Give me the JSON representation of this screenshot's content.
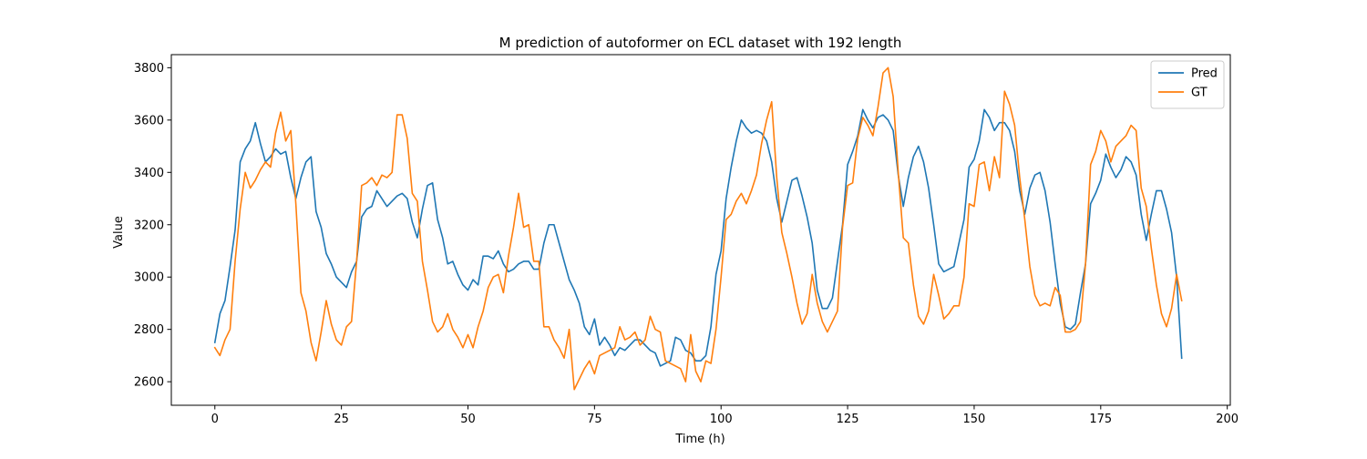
{
  "chart_data": {
    "type": "line",
    "title": "M prediction of autoformer on ECL dataset with 192 length",
    "xlabel": "Time (h)",
    "ylabel": "Value",
    "xlim": [
      -8.6,
      200.6
    ],
    "ylim": [
      2510,
      3850
    ],
    "x_ticks": [
      0,
      25,
      50,
      75,
      100,
      125,
      150,
      175,
      200
    ],
    "y_ticks": [
      2600,
      2800,
      3000,
      3200,
      3400,
      3600,
      3800
    ],
    "grid": false,
    "legend_position": "top-right",
    "series": [
      {
        "name": "Pred",
        "color": "#1f77b4",
        "values": [
          2750,
          2860,
          2910,
          3040,
          3180,
          3440,
          3490,
          3520,
          3590,
          3510,
          3440,
          3460,
          3490,
          3470,
          3480,
          3380,
          3300,
          3380,
          3440,
          3460,
          3250,
          3190,
          3090,
          3050,
          3000,
          2980,
          2960,
          3020,
          3060,
          3230,
          3260,
          3270,
          3330,
          3300,
          3270,
          3290,
          3310,
          3320,
          3300,
          3210,
          3150,
          3260,
          3350,
          3360,
          3220,
          3150,
          3050,
          3060,
          3010,
          2970,
          2950,
          2990,
          2970,
          3080,
          3080,
          3070,
          3100,
          3050,
          3020,
          3030,
          3050,
          3060,
          3060,
          3030,
          3030,
          3130,
          3200,
          3200,
          3130,
          3060,
          2990,
          2950,
          2900,
          2810,
          2780,
          2840,
          2740,
          2770,
          2740,
          2700,
          2730,
          2720,
          2740,
          2760,
          2760,
          2740,
          2720,
          2710,
          2660,
          2670,
          2680,
          2770,
          2760,
          2720,
          2710,
          2680,
          2680,
          2700,
          2810,
          3010,
          3100,
          3300,
          3420,
          3520,
          3600,
          3570,
          3550,
          3560,
          3550,
          3520,
          3440,
          3300,
          3210,
          3290,
          3370,
          3380,
          3310,
          3230,
          3130,
          2950,
          2880,
          2880,
          2920,
          3060,
          3200,
          3430,
          3480,
          3540,
          3640,
          3600,
          3570,
          3610,
          3620,
          3600,
          3560,
          3390,
          3270,
          3380,
          3460,
          3500,
          3440,
          3340,
          3200,
          3050,
          3020,
          3030,
          3040,
          3130,
          3220,
          3420,
          3450,
          3520,
          3640,
          3610,
          3560,
          3590,
          3590,
          3560,
          3480,
          3330,
          3240,
          3340,
          3390,
          3400,
          3330,
          3210,
          3050,
          2900,
          2810,
          2800,
          2820,
          2940,
          3050,
          3280,
          3320,
          3370,
          3470,
          3420,
          3380,
          3410,
          3460,
          3440,
          3390,
          3240,
          3140,
          3240,
          3330,
          3330,
          3260,
          3170,
          3000,
          2690
        ]
      },
      {
        "name": "GT",
        "color": "#ff7f0e",
        "values": [
          2730,
          2700,
          2760,
          2800,
          3060,
          3260,
          3400,
          3340,
          3370,
          3410,
          3440,
          3420,
          3550,
          3630,
          3520,
          3560,
          3280,
          2940,
          2870,
          2750,
          2680,
          2790,
          2910,
          2820,
          2760,
          2740,
          2810,
          2830,
          3060,
          3350,
          3360,
          3380,
          3350,
          3390,
          3380,
          3400,
          3620,
          3620,
          3530,
          3320,
          3290,
          3060,
          2950,
          2830,
          2790,
          2810,
          2860,
          2800,
          2770,
          2730,
          2780,
          2730,
          2810,
          2870,
          2960,
          3000,
          3010,
          2940,
          3080,
          3190,
          3320,
          3190,
          3200,
          3060,
          3060,
          2810,
          2810,
          2760,
          2730,
          2690,
          2800,
          2570,
          2610,
          2650,
          2680,
          2630,
          2700,
          2710,
          2720,
          2730,
          2810,
          2760,
          2770,
          2790,
          2740,
          2760,
          2850,
          2800,
          2790,
          2680,
          2670,
          2660,
          2650,
          2600,
          2780,
          2640,
          2600,
          2680,
          2670,
          2800,
          3000,
          3220,
          3240,
          3290,
          3320,
          3280,
          3330,
          3390,
          3510,
          3600,
          3670,
          3380,
          3170,
          3090,
          3000,
          2900,
          2820,
          2860,
          3010,
          2900,
          2830,
          2790,
          2830,
          2870,
          3190,
          3350,
          3360,
          3530,
          3610,
          3580,
          3540,
          3650,
          3780,
          3800,
          3690,
          3400,
          3150,
          3130,
          2970,
          2850,
          2820,
          2870,
          3010,
          2930,
          2840,
          2860,
          2890,
          2890,
          3000,
          3280,
          3270,
          3430,
          3440,
          3330,
          3460,
          3380,
          3710,
          3660,
          3580,
          3380,
          3220,
          3040,
          2930,
          2890,
          2900,
          2890,
          2960,
          2930,
          2790,
          2790,
          2800,
          2830,
          3050,
          3430,
          3480,
          3560,
          3520,
          3440,
          3500,
          3520,
          3540,
          3580,
          3560,
          3340,
          3270,
          3110,
          2970,
          2860,
          2810,
          2880,
          3010,
          2910
        ]
      }
    ]
  }
}
